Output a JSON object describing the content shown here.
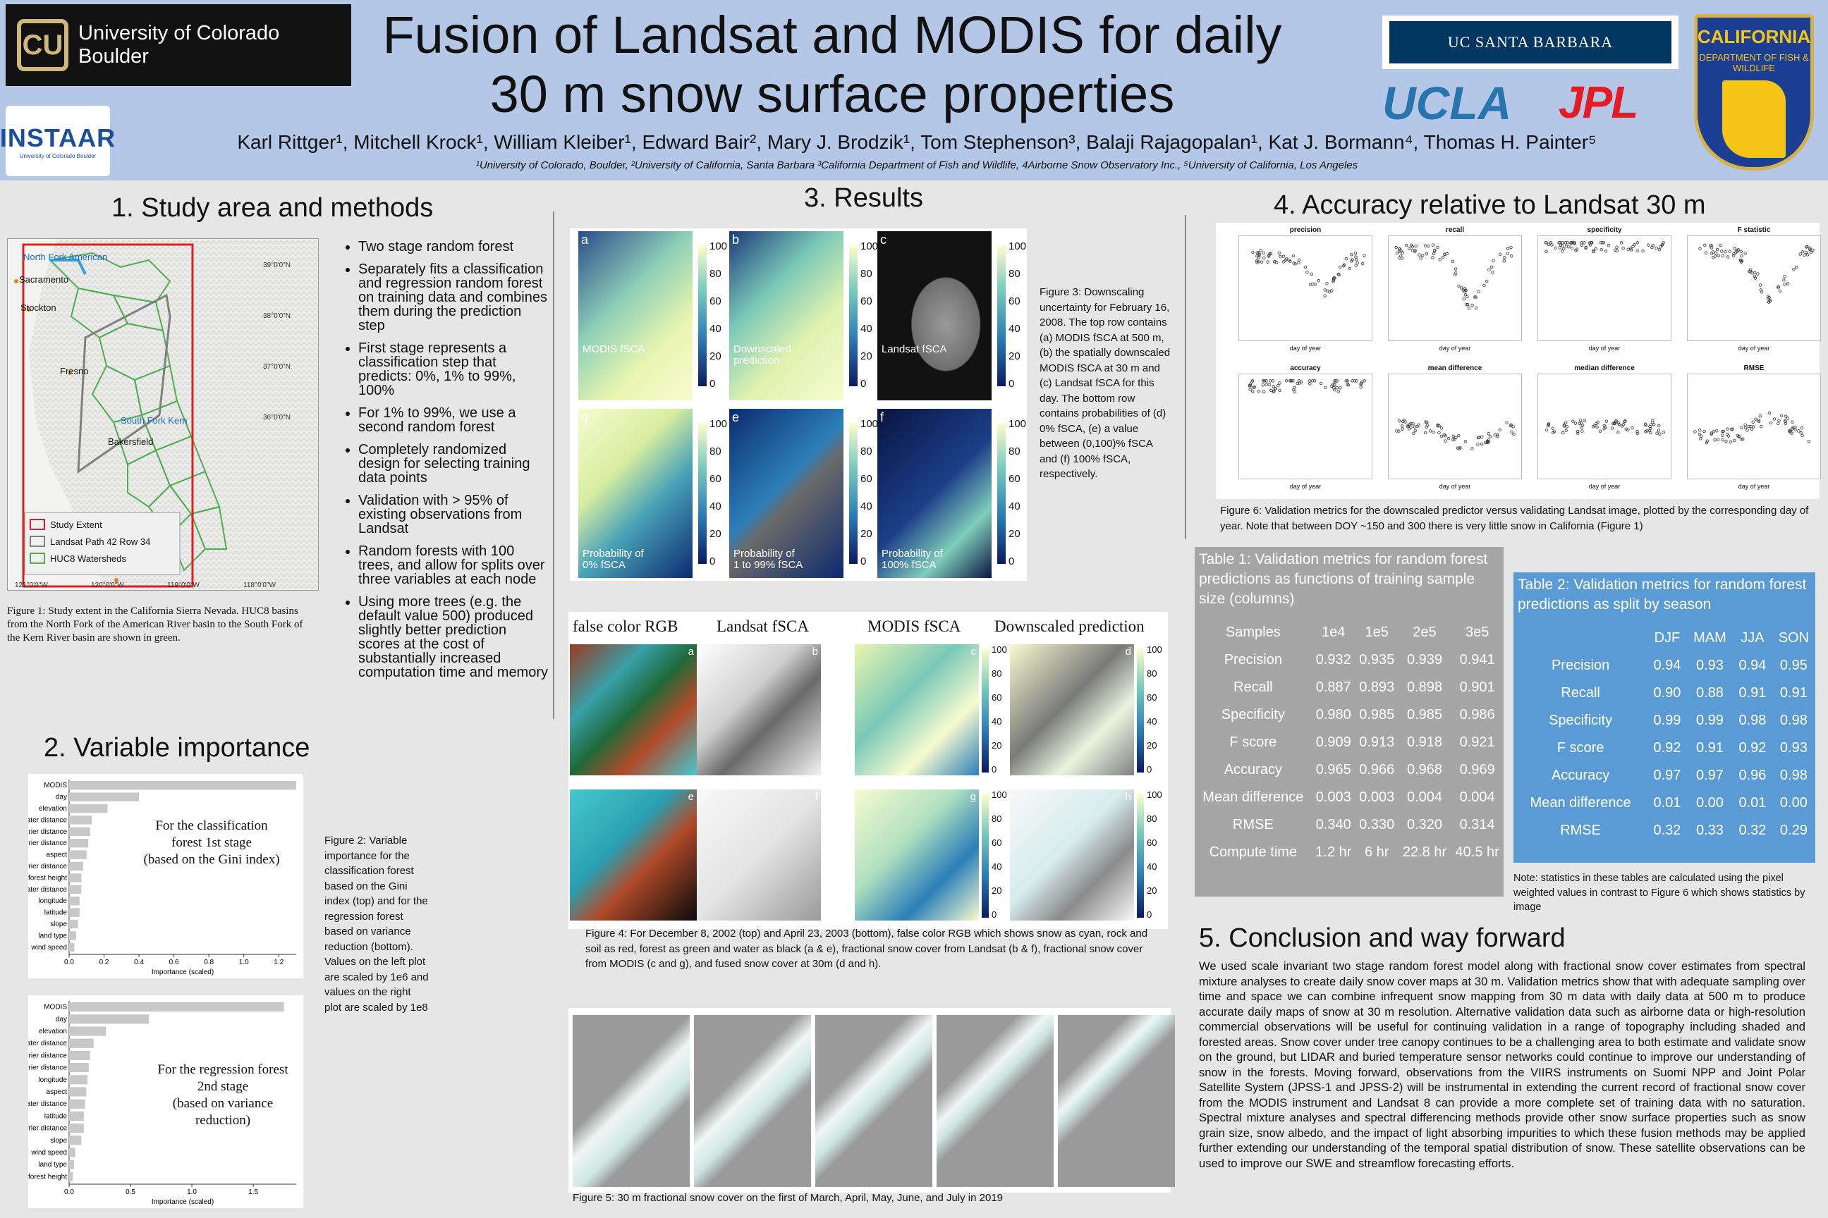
{
  "header": {
    "cu_logo_text": "University of Colorado Boulder",
    "instaar_logo": "INSTAAR",
    "instaar_sub": "University of Colorado Boulder",
    "title_line1": "Fusion of Landsat and MODIS for daily",
    "title_line2": "30 m snow surface properties",
    "authors": "Karl Rittger¹, Mitchell Krock¹, William Kleiber¹, Edward Bair², Mary J. Brodzik¹, Tom Stephenson³, Balaji Rajagopalan¹, Kat J. Bormann⁴, Thomas H. Painter⁵",
    "affiliations": "¹University of Colorado, Boulder, ²University of California, Santa Barbara ³California Department of Fish and Wildlife, 4Airborne Snow Observatory Inc., ⁵University of California, Los Angeles",
    "ucsb": "UC SANTA BARBARA",
    "ucla": "UCLA",
    "jpl": "JPL",
    "cdfw_name": "CALIFORNIA",
    "cdfw_sub": "DEPARTMENT OF FISH & WILDLIFE"
  },
  "section1": {
    "heading": "1. Study area and methods",
    "map_labels": {
      "north_fork": "North Fork American",
      "sacramento": "Sacramento",
      "stockton": "Stockton",
      "fresno": "Fresno",
      "south_fork": "South Fork Kern",
      "bakersfield": "Bakersfield",
      "lat39": "39°0'0\"N",
      "lat38": "38°0'0\"N",
      "lat37": "37°0'0\"N",
      "lat36": "36°0'0\"N",
      "lon121": "121°0'0\"W",
      "lon120": "120°0'0\"W",
      "lon119": "119°0'0\"W",
      "lon118": "118°0'0\"W",
      "legend1": "Study Extent",
      "legend2": "Landsat Path 42 Row 34",
      "legend3": "HUC8 Watersheds"
    },
    "bullets": [
      "Two stage random forest",
      "Separately fits a classification and regression random forest on training data and combines them during the prediction step",
      "First stage represents a classification step that predicts: 0%, 1% to 99%, 100%",
      "For 1% to 99%, we use a second random forest",
      "Completely randomized design for selecting training data points",
      "Validation with > 95% of existing observations from Landsat",
      "Random forests with 100 trees, and allow for splits over three variables at each node",
      "Using more trees (e.g. the default value 500) produced slightly better prediction scores at the cost of substantially increased computation time and memory"
    ],
    "fig1_caption": "Figure 1: Study extent in the California Sierra Nevada. HUC8 basins from the North Fork of the American River basin to the South Fork of the Kern River basin are shown in green."
  },
  "section2": {
    "heading": "2. Variable importance",
    "chart1_note_l1": "For the classification",
    "chart1_note_l2": "forest 1st stage",
    "chart1_note_l3": "(based on the Gini index)",
    "chart2_note_l1": "For the regression forest",
    "chart2_note_l2": "2nd stage",
    "chart2_note_l3": "(based on variance",
    "chart2_note_l4": "reduction)",
    "fig2_caption": "Figure 2: Variable importance for the classification forest based on the Gini index (top) and for the regression forest based on variance reduction (bottom). Values on the left plot are scaled by 1e6 and values on the right plot are scaled by 1e8"
  },
  "chart_data": [
    {
      "type": "bar",
      "orientation": "horizontal",
      "categories": [
        "MODIS",
        "day",
        "elevation",
        "SW water distance",
        "NW barrier distance",
        "SW barrier distance",
        "aspect",
        "W barrier distance",
        "forest height",
        "W water distance",
        "longitude",
        "latitude",
        "slope",
        "land type",
        "wind speed"
      ],
      "values": [
        1.3,
        0.4,
        0.22,
        0.13,
        0.12,
        0.11,
        0.1,
        0.08,
        0.07,
        0.07,
        0.06,
        0.06,
        0.05,
        0.04,
        0.03
      ],
      "xlabel": "Importance (scaled)",
      "xticks": [
        "0.0",
        "0.2",
        "0.4",
        "0.6",
        "0.8",
        "1.0",
        "1.2"
      ],
      "xlim": [
        0,
        1.3
      ]
    },
    {
      "type": "bar",
      "orientation": "horizontal",
      "categories": [
        "MODIS",
        "day",
        "elevation",
        "SW water distance",
        "W barrier distance",
        "SW barrier distance",
        "longitude",
        "aspect",
        "W water distance",
        "latitude",
        "NW barrier distance",
        "slope",
        "wind speed",
        "land type",
        "forest height"
      ],
      "values": [
        1.75,
        0.65,
        0.3,
        0.2,
        0.17,
        0.16,
        0.15,
        0.14,
        0.13,
        0.12,
        0.12,
        0.1,
        0.05,
        0.04,
        0.03
      ],
      "xlabel": "Importance (scaled)",
      "xticks": [
        "0.0",
        "0.5",
        "1.0",
        "1.5"
      ],
      "xlim": [
        0,
        1.85
      ]
    },
    {
      "type": "table",
      "title": "Table 1: Validation metrics for random forest predictions as functions of training sample size (columns)",
      "columns": [
        "Samples",
        "1e4",
        "1e5",
        "2e5",
        "3e5"
      ],
      "rows": [
        [
          "Precision",
          "0.932",
          "0.935",
          "0.939",
          "0.941"
        ],
        [
          "Recall",
          "0.887",
          "0.893",
          "0.898",
          "0.901"
        ],
        [
          "Specificity",
          "0.980",
          "0.985",
          "0.985",
          "0.986"
        ],
        [
          "F score",
          "0.909",
          "0.913",
          "0.918",
          "0.921"
        ],
        [
          "Accuracy",
          "0.965",
          "0.966",
          "0.968",
          "0.969"
        ],
        [
          "Mean difference",
          "0.003",
          "0.003",
          "0.004",
          "0.004"
        ],
        [
          "RMSE",
          "0.340",
          "0.330",
          "0.320",
          "0.314"
        ],
        [
          "Compute time",
          "1.2 hr",
          "6 hr",
          "22.8 hr",
          "40.5 hr"
        ]
      ]
    },
    {
      "type": "table",
      "title": "Table 2: Validation metrics for random forest predictions as split by season",
      "columns": [
        "",
        "DJF",
        "MAM",
        "JJA",
        "SON"
      ],
      "rows": [
        [
          "Precision",
          "0.94",
          "0.93",
          "0.94",
          "0.95"
        ],
        [
          "Recall",
          "0.90",
          "0.88",
          "0.91",
          "0.91"
        ],
        [
          "Specificity",
          "0.99",
          "0.99",
          "0.98",
          "0.98"
        ],
        [
          "F score",
          "0.92",
          "0.91",
          "0.92",
          "0.93"
        ],
        [
          "Accuracy",
          "0.97",
          "0.97",
          "0.96",
          "0.98"
        ],
        [
          "Mean difference",
          "0.01",
          "0.00",
          "0.01",
          "0.00"
        ],
        [
          "RMSE",
          "0.32",
          "0.33",
          "0.32",
          "0.29"
        ]
      ]
    }
  ],
  "section3": {
    "heading": "3. Results",
    "fig3_tiles": [
      {
        "letter": "a",
        "label_l1": "MODIS fSCA",
        "label_l2": ""
      },
      {
        "letter": "b",
        "label_l1": "Downscaled",
        "label_l2": "prediction"
      },
      {
        "letter": "c",
        "label_l1": "Landsat fSCA",
        "label_l2": ""
      },
      {
        "letter": "d",
        "label_l1": "Probability of",
        "label_l2": "0% fSCA"
      },
      {
        "letter": "e",
        "label_l1": "Probability of",
        "label_l2": "1 to 99% fSCA"
      },
      {
        "letter": "f",
        "label_l1": "Probability of",
        "label_l2": "100% fSCA"
      }
    ],
    "colorbar_ticks": [
      "100",
      "80",
      "60",
      "40",
      "20",
      "0"
    ],
    "fig3_caption": "Figure 3: Downscaling uncertainty for February 16, 2008. The top row contains (a) MODIS fSCA at 500 m, (b) the spatially downscaled MODIS fSCA at 30 m and (c) Landsat fSCA for this day. The bottom row contains probabilities of (d) 0% fSCA, (e) a value between (0,100)% fSCA and (f) 100% fSCA, respectively.",
    "fig4_headers": [
      "false color RGB",
      "Landsat fSCA",
      "MODIS fSCA",
      "Downscaled prediction"
    ],
    "fig4_letters": [
      "a",
      "b",
      "c",
      "d",
      "e",
      "f",
      "g",
      "h"
    ],
    "fig4_caption": "Figure 4: For December 8, 2002 (top) and April 23, 2003 (bottom), false color RGB which shows snow as cyan, rock and soil as red, forest as green and water as black (a & e), fractional snow cover from Landsat (b & f), fractional snow cover from MODIS (c and g), and fused snow cover at 30m (d and h).",
    "fig5_caption": "Figure 5: 30 m fractional snow cover on the first of March, April, May, June, and July in 2019"
  },
  "section4": {
    "heading": "4. Accuracy relative to Landsat 30 m",
    "plot_titles": [
      "precision",
      "recall",
      "specificity",
      "F statistic",
      "accuracy",
      "mean difference",
      "median difference",
      "RMSE"
    ],
    "plot_xlabel": "day of year",
    "fig6_caption": "Figure 6:  Validation metrics for the downscaled predictor versus validating Landsat image, plotted by the corresponding day of year. Note that between DOY ~150 and 300 there is very little snow in California (Figure 1)",
    "table_note": "Note: statistics in these tables are calculated using the pixel weighted values in contrast to Figure 6 which shows statistics by image"
  },
  "section5": {
    "heading": "5. Conclusion and way forward",
    "text": "We used scale invariant two stage random forest model along with fractional snow cover estimates from spectral mixture analyses to create daily snow cover maps at 30 m. Validation metrics show that with adequate sampling over time and space we can combine infrequent snow mapping from 30 m data with daily data at 500 m to produce accurate daily maps of snow at 30 m resolution. Alternative validation data such as airborne data or high-resolution commercial observations will be useful for continuing validation in a range of topography including shaded and forested areas. Snow cover under tree canopy continues to be a challenging area to both estimate and validate snow on the ground, but LIDAR and buried temperature sensor networks could continue to improve our understanding of snow in the forests. Moving forward, observations from the VIIRS instruments on Suomi NPP and Joint Polar Satellite System (JPSS-1 and JPSS-2) will be instrumental in extending the current record of fractional snow cover from the MODIS instrument and Landsat 8 can provide a more complete set of training data with no saturation. Spectral mixture analyses and spectral differencing methods provide other snow surface properties such as snow grain size, snow albedo, and the impact of light absorbing impurities to which these fusion methods may be applied further extending our understanding of the temporal spatial distribution of snow. These satellite observations can be used to improve our SWE and streamflow forecasting efforts."
  },
  "colors": {
    "header_bg": "#b4c7e7",
    "table1_bg": "#a6a6a6",
    "table2_bg": "#5b9bd5",
    "study_extent": "#e02020",
    "landsat_path": "#808080",
    "huc8": "#4caf50",
    "river": "#39a0e0"
  }
}
